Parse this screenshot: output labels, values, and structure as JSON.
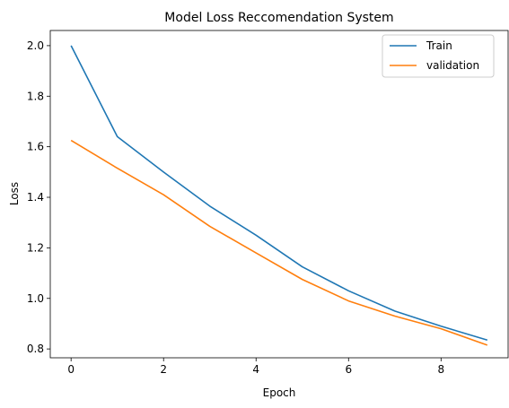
{
  "chart_data": {
    "type": "line",
    "title": "Model Loss Reccomendation System",
    "xlabel": "Epoch",
    "ylabel": "Loss",
    "x": [
      0,
      1,
      2,
      3,
      4,
      5,
      6,
      7,
      8,
      9
    ],
    "xlim": [
      -0.45,
      9.45
    ],
    "ylim": [
      0.765,
      2.06
    ],
    "xticks": [
      0,
      2,
      4,
      6,
      8
    ],
    "yticks": [
      0.8,
      1.0,
      1.2,
      1.4,
      1.6,
      1.8,
      2.0
    ],
    "xtick_labels": [
      "0",
      "2",
      "4",
      "6",
      "8"
    ],
    "ytick_labels": [
      "0.8",
      "1.0",
      "1.2",
      "1.4",
      "1.6",
      "1.8",
      "2.0"
    ],
    "grid": false,
    "legend_position": "top-right",
    "series": [
      {
        "name": "Train",
        "color": "#1f77b4",
        "values": [
          2.0,
          1.64,
          1.5,
          1.365,
          1.25,
          1.125,
          1.03,
          0.95,
          0.89,
          0.835
        ]
      },
      {
        "name": "validation",
        "color": "#ff7f0e",
        "values": [
          1.625,
          1.515,
          1.41,
          1.285,
          1.18,
          1.075,
          0.99,
          0.93,
          0.88,
          0.815
        ]
      }
    ]
  }
}
